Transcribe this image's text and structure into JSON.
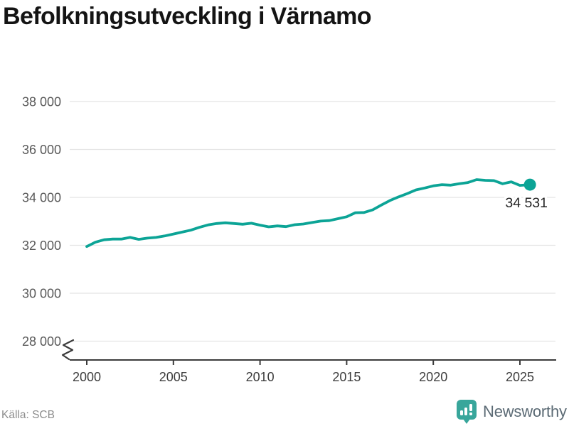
{
  "title": "Befolkningsutveckling i Värnamo",
  "source": "Källa: SCB",
  "branding": {
    "name": "Newsworthy",
    "icon_color": "#38a69b",
    "text_color": "#5b6a74"
  },
  "chart_data": {
    "type": "line",
    "title": "Befolkningsutveckling i Värnamo",
    "xlabel": "",
    "ylabel": "",
    "grid": "horizontal",
    "axis_break": true,
    "xlim": [
      2000,
      2025.6
    ],
    "ylim": [
      27800,
      38300
    ],
    "x_ticks": [
      2000,
      2005,
      2010,
      2015,
      2020,
      2025
    ],
    "x_tick_labels": [
      "2000",
      "2005",
      "2010",
      "2015",
      "2020",
      "2025"
    ],
    "y_ticks": [
      38000,
      36000,
      34000,
      32000,
      30000,
      28000
    ],
    "y_tick_labels": [
      "38 000",
      "36 000",
      "34 000",
      "32 000",
      "30 000",
      "28 000"
    ],
    "end_label": "34 531",
    "line_color": "#0ca496",
    "grid_color": "#e4e4e4",
    "axis_color": "#3b3b3b",
    "series": [
      {
        "name": "Befolkning i Värnamo",
        "color": "#0ca496",
        "x": [
          2000.0,
          2000.5,
          2001.0,
          2001.5,
          2002.0,
          2002.5,
          2003.0,
          2003.5,
          2004.0,
          2004.5,
          2005.0,
          2005.5,
          2006.0,
          2006.5,
          2007.0,
          2007.5,
          2008.0,
          2008.5,
          2009.0,
          2009.5,
          2010.0,
          2010.5,
          2011.0,
          2011.5,
          2012.0,
          2012.5,
          2013.0,
          2013.5,
          2014.0,
          2014.5,
          2015.0,
          2015.5,
          2016.0,
          2016.5,
          2017.0,
          2017.5,
          2018.0,
          2018.5,
          2019.0,
          2019.5,
          2020.0,
          2020.5,
          2021.0,
          2021.5,
          2022.0,
          2022.5,
          2023.0,
          2023.5,
          2024.0,
          2024.5,
          2025.0,
          2025.58
        ],
        "values": [
          31950,
          32130,
          32230,
          32260,
          32260,
          32330,
          32250,
          32300,
          32330,
          32390,
          32470,
          32550,
          32630,
          32750,
          32850,
          32910,
          32940,
          32910,
          32880,
          32920,
          32840,
          32770,
          32810,
          32780,
          32860,
          32890,
          32950,
          33010,
          33030,
          33110,
          33190,
          33360,
          33370,
          33480,
          33680,
          33870,
          34020,
          34160,
          34310,
          34390,
          34480,
          34530,
          34510,
          34570,
          34620,
          34740,
          34710,
          34700,
          34570,
          34650,
          34500,
          34531
        ],
        "last_value": 34531
      }
    ]
  }
}
